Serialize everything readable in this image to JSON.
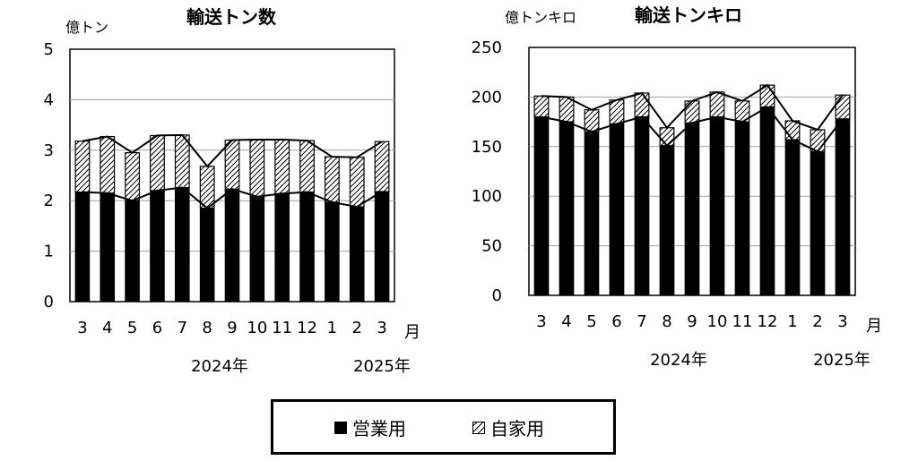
{
  "legend": {
    "business_label": "営業用",
    "private_label": "自家用"
  },
  "chart_data": [
    {
      "type": "bar",
      "stacked": true,
      "title": "輸送トン数",
      "unit": "億トン",
      "month_word": "月",
      "categories": [
        "3",
        "4",
        "5",
        "6",
        "7",
        "8",
        "9",
        "10",
        "11",
        "12",
        "1",
        "2",
        "3"
      ],
      "year_labels": [
        "2024年",
        "2025年"
      ],
      "series": [
        {
          "name": "営業用",
          "values": [
            2.17,
            2.15,
            2.0,
            2.2,
            2.26,
            1.85,
            2.23,
            2.08,
            2.14,
            2.17,
            1.97,
            1.88,
            2.18
          ]
        },
        {
          "name": "自家用",
          "values": [
            1.01,
            1.12,
            0.95,
            1.09,
            1.04,
            0.83,
            0.97,
            1.13,
            1.07,
            1.02,
            0.9,
            0.98,
            0.99
          ]
        }
      ],
      "ylim": [
        0,
        5
      ],
      "yticks": [
        0,
        1,
        2,
        3,
        4,
        5
      ],
      "grid": true
    },
    {
      "type": "bar",
      "stacked": true,
      "title": "輸送トンキロ",
      "unit": "億トンキロ",
      "month_word": "月",
      "categories": [
        "3",
        "4",
        "5",
        "6",
        "7",
        "8",
        "9",
        "10",
        "11",
        "12",
        "1",
        "2",
        "3"
      ],
      "year_labels": [
        "2024年",
        "2025年"
      ],
      "series": [
        {
          "name": "営業用",
          "values": [
            180,
            175,
            165,
            173,
            180,
            151,
            174,
            180,
            175,
            190,
            157,
            145,
            178
          ]
        },
        {
          "name": "自家用",
          "values": [
            21,
            25,
            22,
            24,
            24,
            18,
            22,
            25,
            21,
            22,
            19,
            22,
            24
          ]
        }
      ],
      "ylim": [
        0,
        250
      ],
      "yticks": [
        0,
        50,
        100,
        150,
        200,
        250
      ],
      "grid": true
    }
  ]
}
